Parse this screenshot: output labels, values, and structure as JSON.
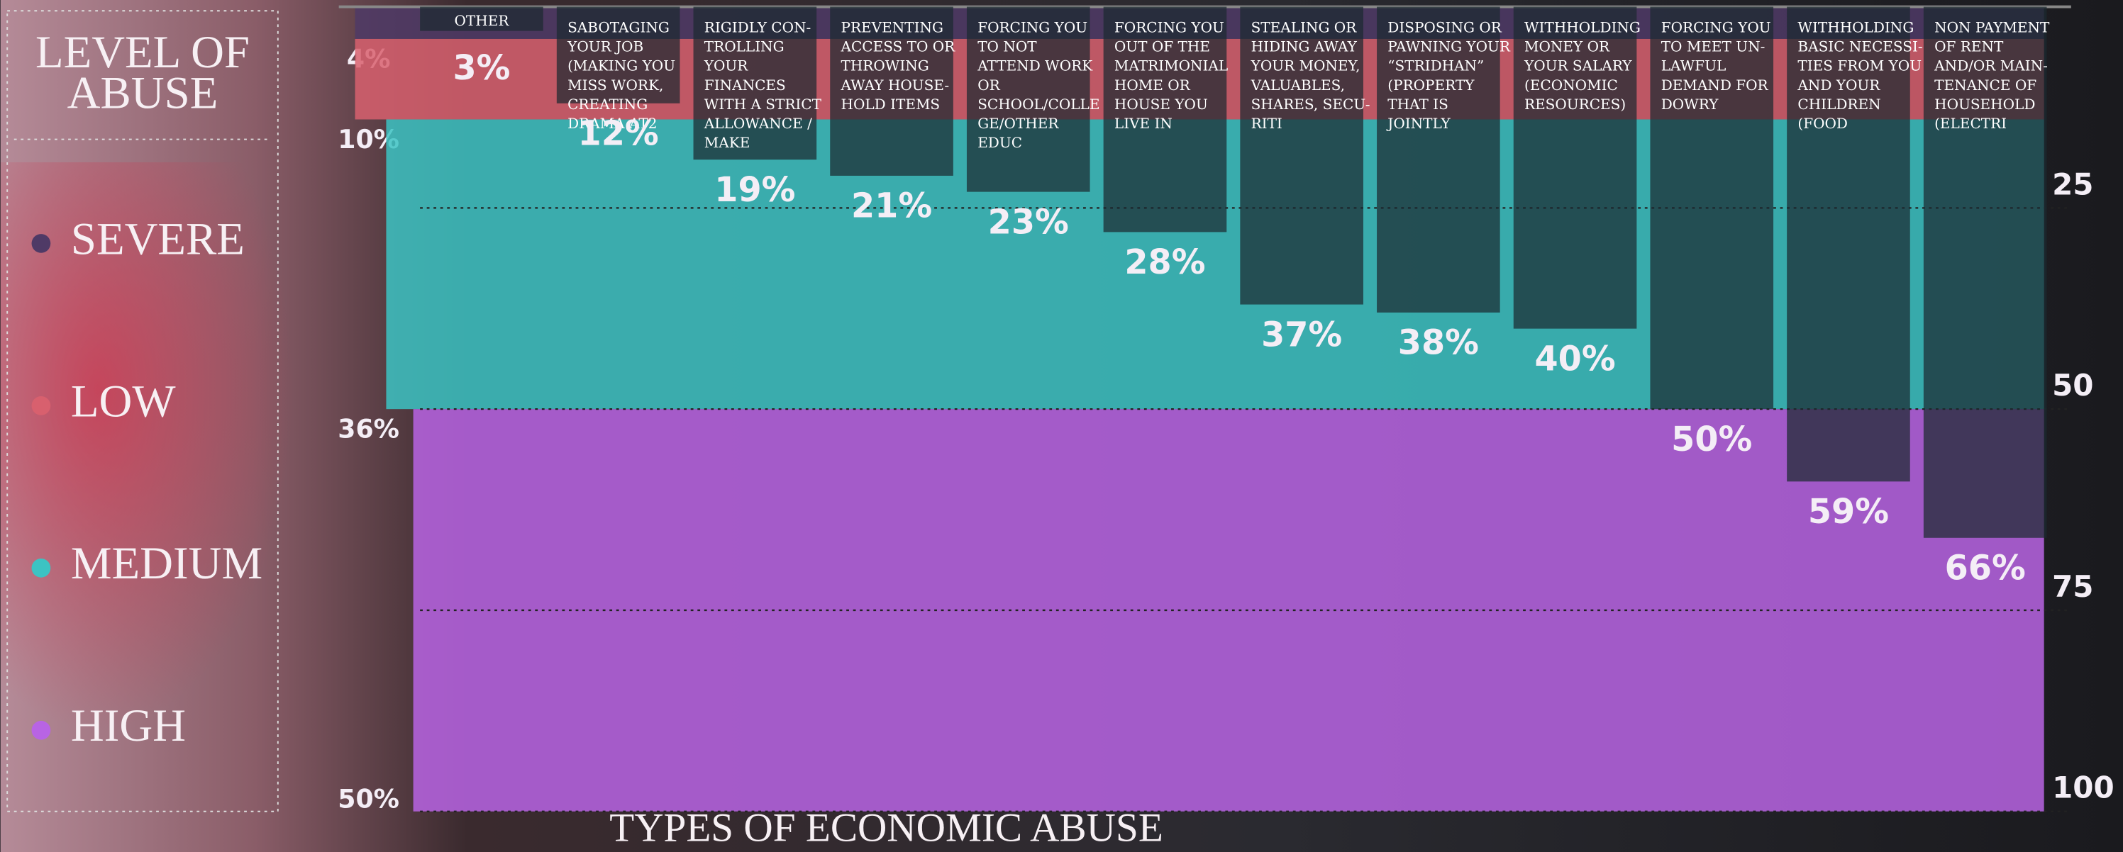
{
  "chart_data": {
    "type": "bar",
    "x_label": "TYPES OF ECONOMIC ABUSE",
    "legend_title": "LEVEL OF\nABUSE",
    "categories": [
      "OTHER",
      "SABOTAGING\nYOUR JOB\n(MAKING YOU\nMISS WORK,\nCREATING\nDRAMA AT2",
      "RIGIDLY CON-\nTROLLING\nYOUR\nFINANCES\nWITH A STRICT\nALLOWANCE /\nMAKE",
      "PREVENTING\nACCESS TO OR\nTHROWING\nAWAY HOUSE-\nHOLD ITEMS",
      "FORCING YOU\nTO NOT\nATTEND WORK\nOR\nSCHOOL/COLLE\nGE/OTHER\nEDUC",
      "FORCING YOU\nOUT OF THE\nMATRIMONIAL\nHOME OR\nHOUSE YOU\nLIVE IN",
      "STEALING OR\nHIDING AWAY\nYOUR MONEY,\nVALUABLES,\nSHARES, SECU-\nRITI",
      "DISPOSING OR\nPAWNING YOUR\n“STRIDHAN”\n(PROPERTY\nTHAT IS\nJOINTLY",
      "WITHHOLDING\nMONEY OR\nYOUR SALARY\n(ECONOMIC\nRESOURCES)",
      "FORCING YOU\nTO MEET UN-\nLAWFUL\nDEMAND FOR\nDOWRY",
      "WITHHOLDING\nBASIC NECESSI-\nTIES FROM YOU\nAND YOUR\nCHILDREN\n(FOOD",
      "NON PAYMENT\nOF RENT\nAND/OR MAIN-\nTENANCE OF\nHOUSEHOLD\n(ELECTRI"
    ],
    "values": [
      3,
      12,
      19,
      21,
      23,
      28,
      37,
      38,
      40,
      50,
      59,
      66
    ],
    "value_labels": [
      "3%",
      "12%",
      "19%",
      "21%",
      "23%",
      "28%",
      "37%",
      "38%",
      "40%",
      "50%",
      "59%",
      "66%"
    ],
    "color": "#1c2a30",
    "levels": {
      "names": [
        "SEVERE",
        "LOW",
        "MEDIUM",
        "HIGH"
      ],
      "colors": [
        "#4f3a66",
        "#d8606e",
        "#3cc3c3",
        "#b864e4"
      ],
      "values": [
        4,
        10,
        36,
        50
      ],
      "value_labels": [
        "4%",
        "10%",
        "36%",
        "50%"
      ]
    },
    "ylim": [
      0,
      100
    ],
    "yticks": [
      0,
      25,
      50,
      75,
      100
    ],
    "grid": true
  }
}
